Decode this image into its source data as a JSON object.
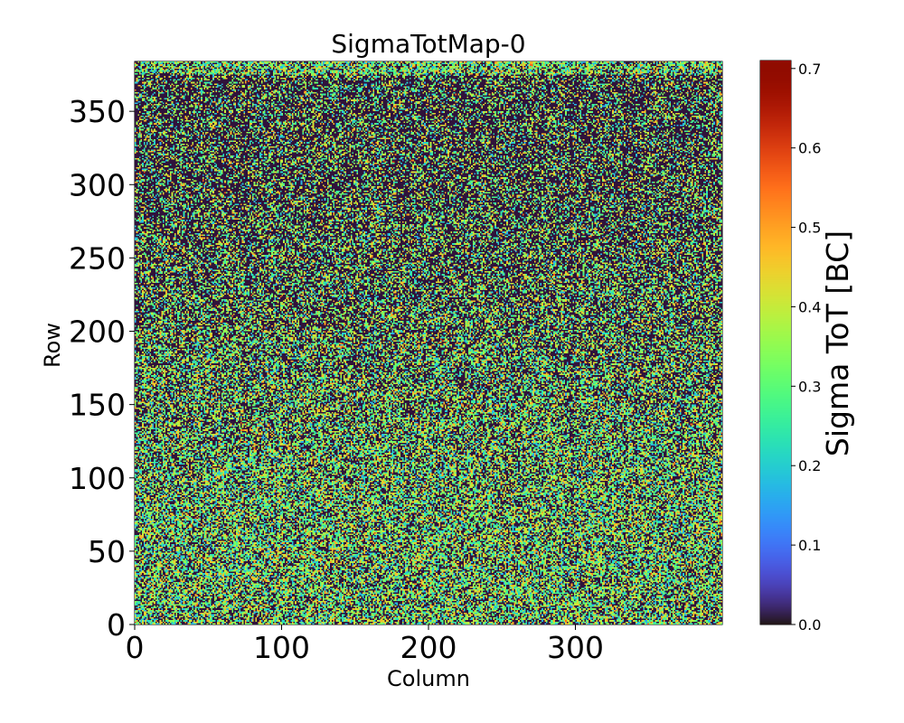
{
  "chart_data": {
    "type": "heatmap",
    "title": "SigmaTotMap-0",
    "xlabel": "Column",
    "ylabel": "Row",
    "xlim": [
      0,
      400
    ],
    "ylim": [
      0,
      384
    ],
    "x_ticks": [
      0,
      100,
      200,
      300
    ],
    "y_ticks": [
      0,
      50,
      100,
      150,
      200,
      250,
      300,
      350
    ],
    "grid_cols": 400,
    "grid_rows": 384,
    "colormap": "turbo",
    "colorbar": {
      "label": "Sigma ToT [BC]",
      "min": 0.0,
      "max": 0.71,
      "ticks": [
        "0.0",
        "0.1",
        "0.2",
        "0.3",
        "0.4",
        "0.5",
        "0.6",
        "0.7"
      ]
    },
    "distribution": {
      "description_of_values": "noisy per-pixel sigma values; mostly 0.0 (dark) in upper rows, more values around 0.2-0.5 in lower rows (row < 180)",
      "zero_fraction_top": 0.62,
      "zero_fraction_bottom": 0.38,
      "typical_nonzero_range": [
        0.15,
        0.5
      ]
    }
  }
}
